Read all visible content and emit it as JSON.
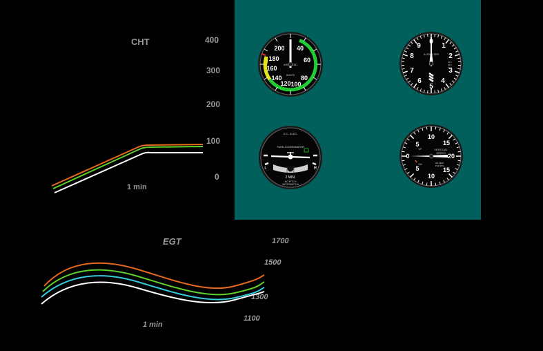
{
  "cht": {
    "title": "CHT",
    "ticks": [
      "400",
      "300",
      "200",
      "100",
      "0"
    ],
    "time_label": "1 min"
  },
  "egt": {
    "title": "EGT",
    "ticks": [
      "1700",
      "1500",
      "1300",
      "1100"
    ],
    "time_label": "1 min"
  },
  "colors": {
    "panel": "#02605c",
    "trace_orange": "#e8691e",
    "trace_green": "#5fd12b",
    "trace_cyan": "#33ccdd",
    "trace_white": "#ffffff"
  },
  "instruments": {
    "airspeed": {
      "label": "AIRSPEED",
      "units": "KNOTS",
      "numbers": [
        "200",
        "40",
        "180",
        "60",
        "160",
        "140",
        "80",
        "120",
        "100"
      ]
    },
    "altimeter": {
      "label": "ALTIMETER",
      "numbers": [
        "0",
        "1",
        "2",
        "3",
        "4",
        "5",
        "6",
        "7",
        "8",
        "9"
      ],
      "kollsman": [
        "29.9",
        "30.0",
        "30.1"
      ]
    },
    "turn_coordinator": {
      "top_label": "D.C. ELEC.",
      "label": "TURN COORDINATOR",
      "left": "L",
      "right": "R",
      "time": "2 MIN.",
      "note_line1": "NO PITCH",
      "note_line2": "INFORMATION"
    },
    "vsi": {
      "label_line1": "VERTICAL",
      "label_line2": "SPEED",
      "units_line1": "100 FEET",
      "units_line2": "PER MIN",
      "up": "UP",
      "down": "DN",
      "numbers": [
        "10",
        "5",
        "15",
        "20",
        "15",
        "10",
        "5",
        "0"
      ]
    }
  }
}
